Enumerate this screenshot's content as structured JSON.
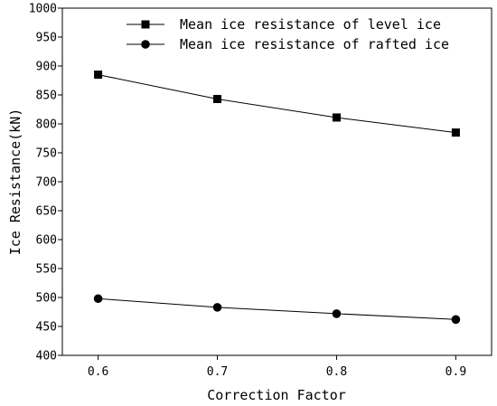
{
  "chart_data": {
    "type": "line",
    "title": "",
    "xlabel": "Correction Factor",
    "ylabel": "Ice Resistance(kN)",
    "x": [
      0.6,
      0.7,
      0.8,
      0.9
    ],
    "x_tick_labels": [
      "0.6",
      "0.7",
      "0.8",
      "0.9"
    ],
    "xlim": [
      0.57,
      0.93
    ],
    "ylim": [
      400,
      1000
    ],
    "y_ticks": [
      400,
      450,
      500,
      550,
      600,
      650,
      700,
      750,
      800,
      850,
      900,
      950,
      1000
    ],
    "y_tick_labels": [
      "400",
      "450",
      "500",
      "550",
      "600",
      "650",
      "700",
      "750",
      "800",
      "850",
      "900",
      "950",
      "1000"
    ],
    "grid": false,
    "legend_position": "top-right",
    "series": [
      {
        "name": "Mean ice resistance of level ice",
        "marker": "square",
        "color": "#000000",
        "values": [
          885,
          843,
          811,
          785
        ]
      },
      {
        "name": "Mean ice resistance of rafted ice",
        "marker": "circle",
        "color": "#000000",
        "values": [
          498,
          483,
          472,
          462
        ]
      }
    ]
  }
}
